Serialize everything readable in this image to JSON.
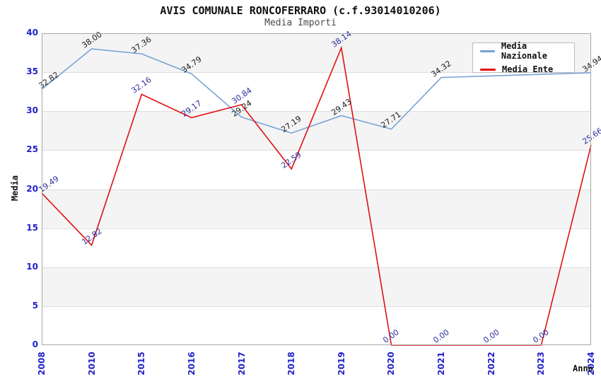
{
  "title": "AVIS COMUNALE RONCOFERRARO (c.f.93014010206)",
  "subtitle": "Media Importi",
  "axes": {
    "y_title": "Media",
    "x_title": "Anno",
    "y_ticks": [
      "0",
      "5",
      "10",
      "15",
      "20",
      "25",
      "30",
      "35",
      "40"
    ],
    "x_ticks": [
      "2008",
      "2010",
      "2015",
      "2016",
      "2017",
      "2018",
      "2019",
      "2020",
      "2021",
      "2022",
      "2023",
      "2024"
    ]
  },
  "legend": {
    "items": [
      {
        "label": "Media Nazionale",
        "color": "#76a3d6"
      },
      {
        "label": "Media Ente",
        "color": "#e01010"
      }
    ]
  },
  "colors": {
    "tick_label": "#2222cc",
    "band": "#f4f4f4",
    "gridline": "#dedede",
    "plot_border": "#a8a8a8",
    "nazionale_line": "#76a3d6",
    "ente_line": "#e01010",
    "nazionale_data_label": "#1a1a1a",
    "ente_data_label": "#2d2da0"
  },
  "chart_data": {
    "type": "line",
    "title": "AVIS COMUNALE RONCOFERRARO (c.f.93014010206)",
    "subtitle": "Media Importi",
    "xlabel": "Anno",
    "ylabel": "Media",
    "ylim": [
      0,
      40
    ],
    "grid": "horizontal gridlines every 5 units with alternating gray/white bands",
    "legend_position": "top-right",
    "x": [
      "2008",
      "2010",
      "2015",
      "2016",
      "2017",
      "2018",
      "2019",
      "2020",
      "2021",
      "2022",
      "2023",
      "2024"
    ],
    "series": [
      {
        "name": "Media Nazionale",
        "color": "#76a3d6",
        "label_color": "#1a1a1a",
        "values": [
          32.82,
          38.0,
          37.36,
          34.79,
          29.24,
          27.19,
          29.43,
          27.71,
          34.32,
          34.53,
          34.73,
          34.94
        ],
        "labels": [
          "32.82",
          "38.00",
          "37.36",
          "34.79",
          "29.24",
          "27.19",
          "29.43",
          "27.71",
          "34.32",
          null,
          null,
          "34.94"
        ]
      },
      {
        "name": "Media Ente",
        "color": "#e01010",
        "label_color": "#2d2da0",
        "values": [
          19.49,
          12.82,
          32.16,
          29.17,
          30.84,
          22.59,
          38.14,
          0.0,
          0.0,
          0.0,
          0.0,
          25.66
        ],
        "labels": [
          "19.49",
          "12.82",
          "32.16",
          "29.17",
          "30.84",
          "22.59",
          "38.14",
          "0.00",
          "0.00",
          "0.00",
          "0.00",
          "25.66"
        ]
      }
    ]
  }
}
